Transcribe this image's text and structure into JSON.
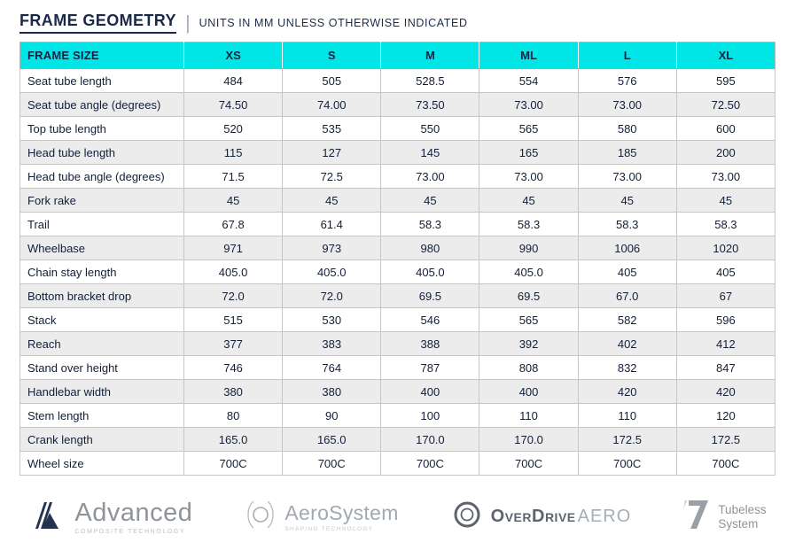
{
  "header": {
    "title": "FRAME GEOMETRY",
    "separator": "|",
    "subtitle": "UNITS IN MM UNLESS OTHERWISE INDICATED"
  },
  "table": {
    "columns": [
      "FRAME SIZE",
      "XS",
      "S",
      "M",
      "ML",
      "L",
      "XL"
    ],
    "rows": [
      {
        "label": "Seat tube length",
        "values": [
          "484",
          "505",
          "528.5",
          "554",
          "576",
          "595"
        ]
      },
      {
        "label": "Seat tube angle (degrees)",
        "values": [
          "74.50",
          "74.00",
          "73.50",
          "73.00",
          "73.00",
          "72.50"
        ]
      },
      {
        "label": "Top tube length",
        "values": [
          "520",
          "535",
          "550",
          "565",
          "580",
          "600"
        ]
      },
      {
        "label": "Head tube length",
        "values": [
          "115",
          "127",
          "145",
          "165",
          "185",
          "200"
        ]
      },
      {
        "label": "Head tube angle (degrees)",
        "values": [
          "71.5",
          "72.5",
          "73.00",
          "73.00",
          "73.00",
          "73.00"
        ]
      },
      {
        "label": "Fork rake",
        "values": [
          "45",
          "45",
          "45",
          "45",
          "45",
          "45"
        ]
      },
      {
        "label": "Trail",
        "values": [
          "67.8",
          "61.4",
          "58.3",
          "58.3",
          "58.3",
          "58.3"
        ]
      },
      {
        "label": "Wheelbase",
        "values": [
          "971",
          "973",
          "980",
          "990",
          "1006",
          "1020"
        ]
      },
      {
        "label": "Chain stay length",
        "values": [
          "405.0",
          "405.0",
          "405.0",
          "405.0",
          "405",
          "405"
        ]
      },
      {
        "label": "Bottom bracket drop",
        "values": [
          "72.0",
          "72.0",
          "69.5",
          "69.5",
          "67.0",
          "67"
        ]
      },
      {
        "label": "Stack",
        "values": [
          "515",
          "530",
          "546",
          "565",
          "582",
          "596"
        ]
      },
      {
        "label": "Reach",
        "values": [
          "377",
          "383",
          "388",
          "392",
          "402",
          "412"
        ]
      },
      {
        "label": "Stand over height",
        "values": [
          "746",
          "764",
          "787",
          "808",
          "832",
          "847"
        ]
      },
      {
        "label": "Handlebar width",
        "values": [
          "380",
          "380",
          "400",
          "400",
          "420",
          "420"
        ]
      },
      {
        "label": "Stem length",
        "values": [
          "80",
          "90",
          "100",
          "110",
          "110",
          "120"
        ]
      },
      {
        "label": "Crank length",
        "values": [
          "165.0",
          "165.0",
          "170.0",
          "170.0",
          "172.5",
          "172.5"
        ]
      },
      {
        "label": "Wheel size",
        "values": [
          "700C",
          "700C",
          "700C",
          "700C",
          "700C",
          "700C"
        ]
      }
    ]
  },
  "footer": {
    "logos": [
      {
        "name": "Advanced",
        "tagline": "COMPOSITE TECHNOLOGY"
      },
      {
        "name": "AeroSystem",
        "tagline": "SHAPING TECHNOLOGY"
      },
      {
        "name_primary": "OverDrive",
        "name_secondary": "AERO"
      },
      {
        "line1": "Tubeless",
        "line2": "System"
      }
    ]
  },
  "colors": {
    "header_bg": "#00e5e5",
    "title": "#19294a",
    "row_alt": "#ececec",
    "border": "#c6c6c6",
    "logo_gray": "#8f949b"
  }
}
